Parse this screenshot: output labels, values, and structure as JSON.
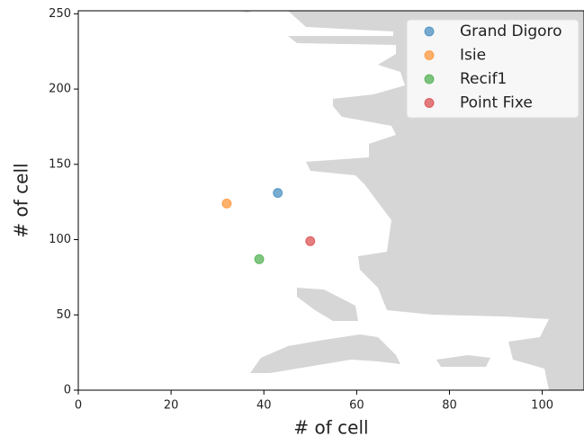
{
  "chart_data": {
    "type": "scatter",
    "xlabel": "# of cell",
    "ylabel": "# of cell",
    "xlim": [
      0,
      109
    ],
    "ylim": [
      0,
      252
    ],
    "xticks": [
      0,
      20,
      40,
      60,
      80,
      100
    ],
    "yticks": [
      0,
      50,
      100,
      150,
      200,
      250
    ],
    "legend": "upper right",
    "series": [
      {
        "name": "Grand Digoro",
        "color": "#1f77b4",
        "x": [
          43
        ],
        "values": [
          131
        ]
      },
      {
        "name": "Isie",
        "color": "#ff7f0e",
        "x": [
          32
        ],
        "values": [
          124
        ]
      },
      {
        "name": "Recif1",
        "color": "#2ca02c",
        "x": [
          39
        ],
        "values": [
          87
        ]
      },
      {
        "name": "Point Fixe",
        "color": "#d62728",
        "x": [
          50
        ],
        "values": [
          99
        ]
      }
    ]
  }
}
